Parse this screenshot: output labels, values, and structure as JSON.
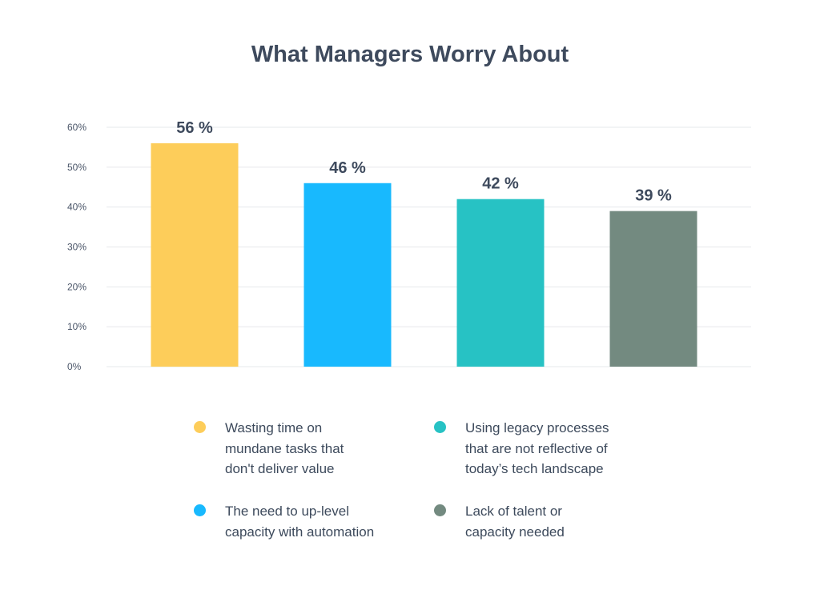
{
  "chart_data": {
    "type": "bar",
    "title": "What Managers Worry About",
    "xlabel": "",
    "ylabel": "",
    "ylim": [
      0,
      60
    ],
    "yticks": [
      0,
      10,
      20,
      30,
      40,
      50,
      60
    ],
    "ytick_labels": [
      "0%",
      "10%",
      "20%",
      "30%",
      "40%",
      "50%",
      "60%"
    ],
    "grid": true,
    "categories": [
      "Wasting time on mundane tasks that don't deliver value",
      "The need to up-level capacity with automation",
      "Using legacy processes that are not reflective of today’s tech landscape",
      "Lack of talent or capacity needed"
    ],
    "values": [
      56,
      46,
      42,
      39
    ],
    "data_labels": [
      "56 %",
      "46 %",
      "42 %",
      "39 %"
    ],
    "colors": [
      "#FDCD5A",
      "#18B9FE",
      "#27C2C4",
      "#738A80"
    ],
    "legend_position": "bottom",
    "legend": [
      {
        "lines": [
          "Wasting time on",
          "mundane tasks that",
          "don't deliver value"
        ],
        "color": "#FDCD5A"
      },
      {
        "lines": [
          "The need to up-level",
          "capacity with automation"
        ],
        "color": "#18B9FE"
      },
      {
        "lines": [
          "Using legacy processes",
          "that are not reflective of",
          "today’s tech landscape"
        ],
        "color": "#27C2C4"
      },
      {
        "lines": [
          "Lack of talent or",
          "capacity needed"
        ],
        "color": "#738A80"
      }
    ]
  }
}
